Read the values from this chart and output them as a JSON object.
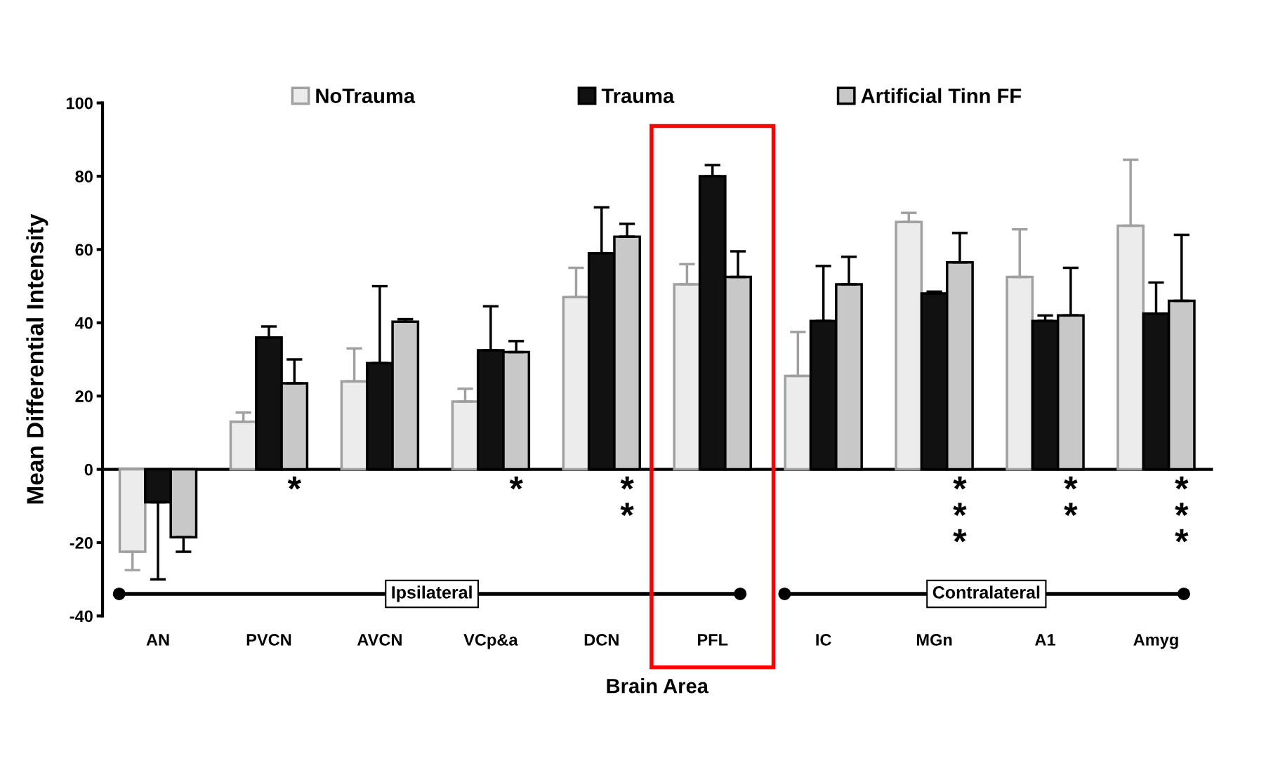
{
  "chart_data": {
    "type": "bar",
    "ylabel": "Mean Differential Intensity",
    "xlabel": "Brain Area",
    "categories": [
      "AN",
      "PVCN",
      "AVCN",
      "VCp&a",
      "DCN",
      "PFL",
      "IC",
      "MGn",
      "A1",
      "Amyg"
    ],
    "series": [
      {
        "name": "NoTrauma",
        "color": "#ececec",
        "values": [
          -22.5,
          13,
          24,
          18.5,
          47,
          50.5,
          25.5,
          67.5,
          52.5,
          66.5
        ],
        "errors": [
          [
            -27.5,
            -22.5
          ],
          [
            13,
            15.5
          ],
          [
            24,
            33
          ],
          [
            18.5,
            22
          ],
          [
            47,
            55
          ],
          [
            50.5,
            56
          ],
          [
            25.5,
            37.5
          ],
          [
            67.5,
            70
          ],
          [
            52.5,
            65.5
          ],
          [
            66.5,
            84.5
          ]
        ]
      },
      {
        "name": "Trauma",
        "color": "#111111",
        "values": [
          -9,
          36,
          29,
          32.5,
          59,
          80,
          40.5,
          48,
          40.5,
          42.5
        ],
        "errors": [
          [
            -30,
            -9
          ],
          [
            36,
            39
          ],
          [
            29,
            50
          ],
          [
            32.5,
            44.5
          ],
          [
            59,
            71.5
          ],
          [
            80,
            83
          ],
          [
            40.5,
            55.5
          ],
          [
            48,
            48.5
          ],
          [
            40.5,
            42
          ],
          [
            42.5,
            51
          ]
        ]
      },
      {
        "name": "Artificial Tinn FF",
        "color": "#c8c8c8",
        "values": [
          -18.5,
          23.5,
          40.3,
          32,
          63.5,
          52.5,
          50.5,
          56.5,
          42,
          46
        ],
        "errors": [
          [
            -22.5,
            -18.5
          ],
          [
            23.5,
            30
          ],
          [
            40.3,
            41
          ],
          [
            32,
            35
          ],
          [
            63.5,
            67
          ],
          [
            52.5,
            59.5
          ],
          [
            50.5,
            58
          ],
          [
            56.5,
            64.5
          ],
          [
            42,
            55
          ],
          [
            46,
            64
          ]
        ]
      }
    ],
    "ylim": [
      -40,
      100
    ],
    "yticks": [
      -40,
      -20,
      0,
      20,
      40,
      60,
      80,
      100
    ],
    "legend": "top",
    "annotations": [
      "*",
      "*",
      "**",
      "***",
      "**",
      "***",
      "Ipsilateral",
      "Contralateral"
    ]
  }
}
